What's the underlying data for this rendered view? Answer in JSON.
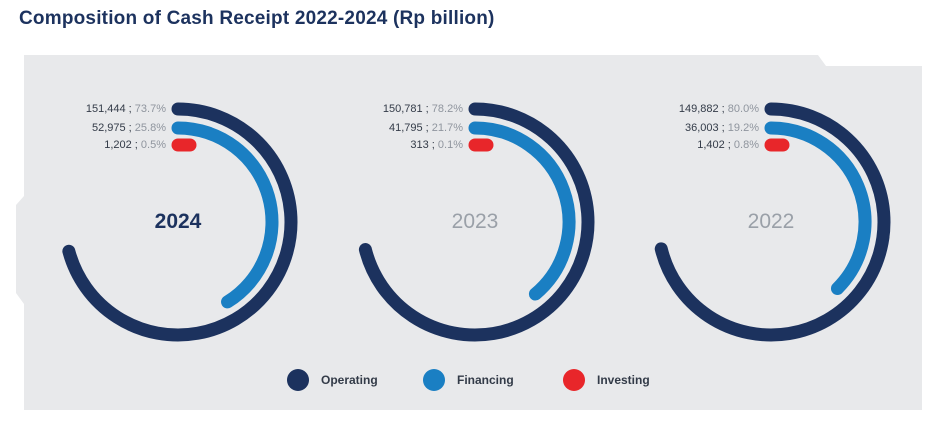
{
  "title": "Composition of Cash Receipt 2022-2024 (Rp billion)",
  "colors": {
    "operating": "#1c325e",
    "financing": "#1a7fc3",
    "investing": "#e8262a",
    "panel": "#e8e9eb"
  },
  "chart_data": {
    "type": "donut",
    "title": "Composition of Cash Receipt 2022-2024 (Rp billion)",
    "series_names": [
      "Operating",
      "Financing",
      "Investing"
    ],
    "legend": "bottom",
    "charts": [
      {
        "year": "2024",
        "active": true,
        "items": [
          {
            "name": "Operating",
            "value": 151444,
            "value_text": "151,444",
            "sep": " ; ",
            "pct": 73.7,
            "pct_text": "73.7%"
          },
          {
            "name": "Financing",
            "value": 52975,
            "value_text": "52,975",
            "sep": " ; ",
            "pct": 25.8,
            "pct_text": "25.8%"
          },
          {
            "name": "Investing",
            "value": 1202,
            "value_text": "1,202",
            "sep": " ; ",
            "pct": 0.5,
            "pct_text": "0.5%"
          }
        ]
      },
      {
        "year": "2023",
        "active": false,
        "items": [
          {
            "name": "Operating",
            "value": 150781,
            "value_text": "150,781",
            "sep": " ; ",
            "pct": 78.2,
            "pct_text": "78.2%"
          },
          {
            "name": "Financing",
            "value": 41795,
            "value_text": "41,795",
            "sep": " ; ",
            "pct": 21.7,
            "pct_text": "21.7%"
          },
          {
            "name": "Investing",
            "value": 313,
            "value_text": "313",
            "sep": " ; ",
            "pct": 0.1,
            "pct_text": "0.1%"
          }
        ]
      },
      {
        "year": "2022",
        "active": false,
        "items": [
          {
            "name": "Operating",
            "value": 149882,
            "value_text": "149,882",
            "sep": " ; ",
            "pct": 80.0,
            "pct_text": "80.0%"
          },
          {
            "name": "Financing",
            "value": 36003,
            "value_text": "36,003",
            "sep": " ; ",
            "pct": 19.2,
            "pct_text": "19.2%"
          },
          {
            "name": "Investing",
            "value": 1402,
            "value_text": "1,402",
            "sep": " ; ",
            "pct": 0.8,
            "pct_text": "0.8%"
          }
        ]
      }
    ]
  }
}
